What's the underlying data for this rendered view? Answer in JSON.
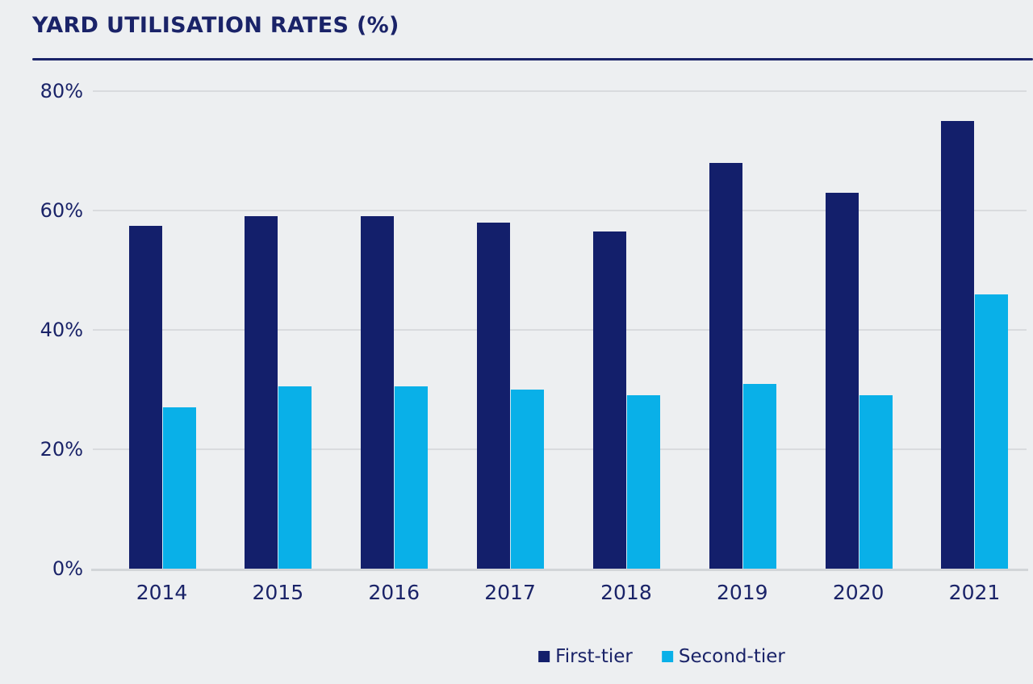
{
  "title": "YARD UTILISATION RATES (%)",
  "chart_data": {
    "type": "bar",
    "title": "YARD UTILISATION RATES (%)",
    "categories": [
      "2014",
      "2015",
      "2016",
      "2017",
      "2018",
      "2019",
      "2020",
      "2021"
    ],
    "series": [
      {
        "name": "First-tier",
        "color": "#131F6B",
        "values": [
          57.5,
          59,
          59,
          58,
          56.5,
          68,
          63,
          75
        ]
      },
      {
        "name": "Second-tier",
        "color": "#09B0E8",
        "values": [
          27,
          30.5,
          30.5,
          30,
          29,
          31,
          29,
          46
        ]
      }
    ],
    "xlabel": "",
    "ylabel": "",
    "ylim": [
      0,
      80
    ],
    "yticks": [
      0,
      20,
      40,
      60,
      80
    ],
    "ytick_suffix": "%",
    "grid": true,
    "legend_position": "bottom-center"
  },
  "colors": {
    "background": "#EDEFF1",
    "text": "#1A2368",
    "gridline": "#D9DBDE",
    "axis_line": "#D2D5D8",
    "title_rule": "#1A2368"
  }
}
